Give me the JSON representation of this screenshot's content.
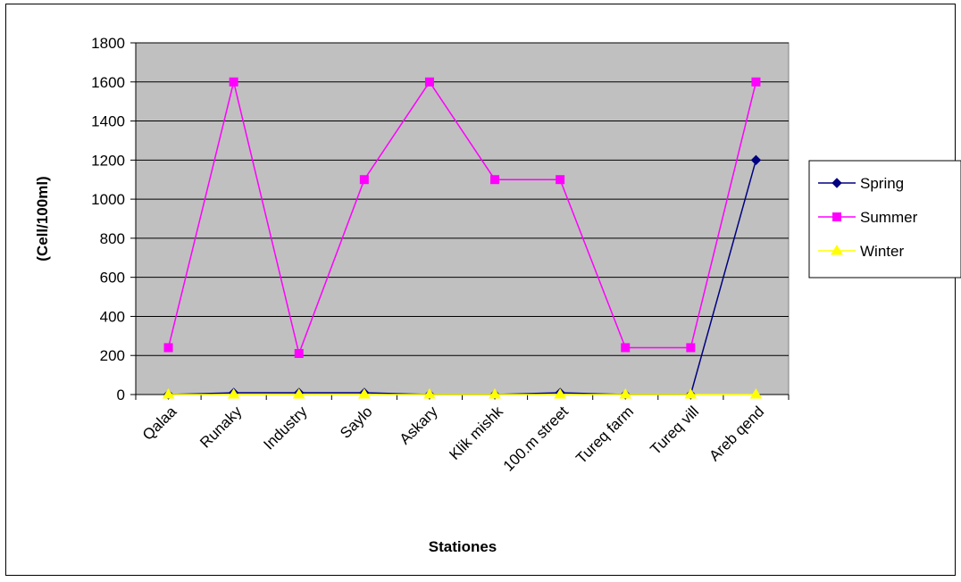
{
  "chart_data": {
    "type": "line",
    "title": "",
    "xlabel": "Stationes",
    "ylabel": "(Cell/100ml)",
    "ylim": [
      0,
      1800
    ],
    "yticks": [
      0,
      200,
      400,
      600,
      800,
      1000,
      1200,
      1400,
      1600,
      1800
    ],
    "grid": true,
    "legend_position": "right",
    "plot_background": "#c0c0c0",
    "categories": [
      "Qalaa",
      "Runaky",
      "Industry",
      "Saylo",
      "Askary",
      "Klik mishk",
      "100.m street",
      "Tureq farm",
      "Tureq vill",
      "Areb qend"
    ],
    "series": [
      {
        "name": "Spring",
        "color": "#000080",
        "marker": "diamond",
        "values": [
          0,
          9,
          9,
          9,
          0,
          0,
          9,
          0,
          0,
          1200
        ]
      },
      {
        "name": "Summer",
        "color": "#ff00ff",
        "marker": "square",
        "values": [
          240,
          1600,
          210,
          1100,
          1600,
          1100,
          1100,
          240,
          240,
          1600
        ]
      },
      {
        "name": "Winter",
        "color": "#ffff00",
        "marker": "triangle",
        "values": [
          0,
          0,
          0,
          0,
          0,
          0,
          0,
          0,
          0,
          0
        ]
      }
    ]
  }
}
